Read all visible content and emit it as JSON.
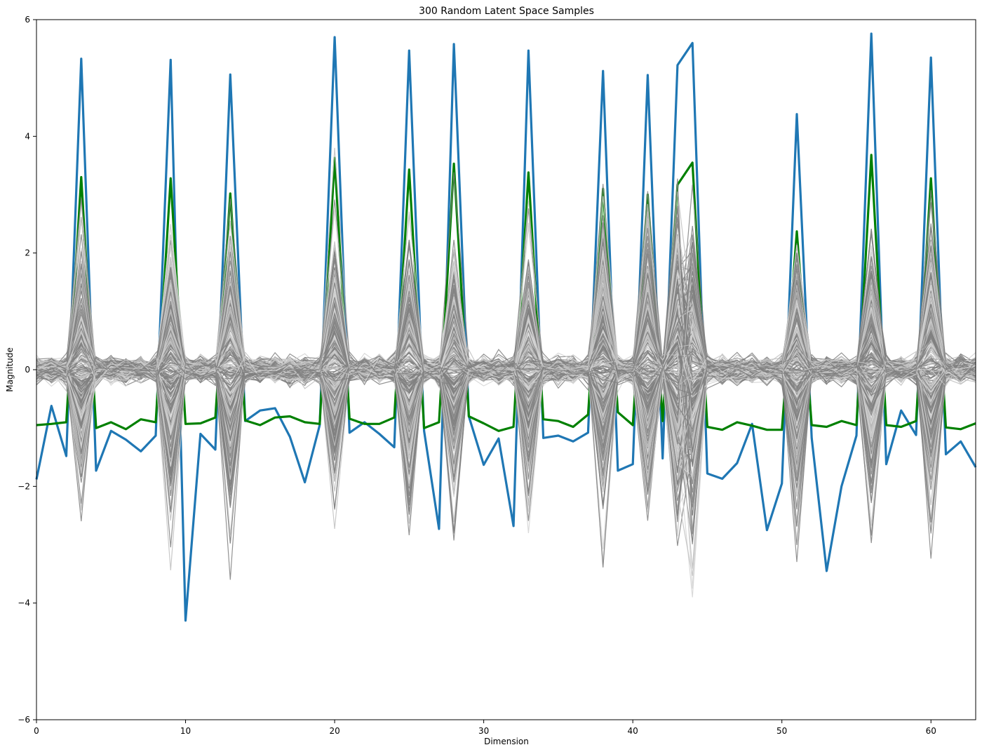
{
  "chart_data": {
    "type": "line",
    "title": "300 Random Latent Space Samples",
    "xlabel": "Dimension",
    "ylabel": "Magnitude",
    "xlim": [
      0,
      63
    ],
    "ylim": [
      -6,
      6
    ],
    "x_ticks": [
      0,
      10,
      20,
      30,
      40,
      50,
      60
    ],
    "y_ticks": [
      -6,
      -4,
      -2,
      0,
      2,
      4,
      6
    ],
    "x_tick_labels": [
      "0",
      "10",
      "20",
      "30",
      "40",
      "50",
      "60"
    ],
    "y_tick_labels": [
      "−6",
      "−4",
      "−2",
      "0",
      "2",
      "4",
      "6"
    ],
    "grid": false,
    "legend": "none",
    "spike_dimensions": [
      3,
      9,
      13,
      20,
      25,
      28,
      33,
      38,
      41,
      43,
      44,
      51,
      56,
      60
    ],
    "random_samples": {
      "count": 300,
      "colors": [
        "#808080",
        "#bfbfbf",
        "#d3d3d3"
      ],
      "note_baseline": 0
    },
    "series": [
      {
        "color": "#1f77b4",
        "x": [
          0,
          1,
          2,
          3,
          4,
          5,
          6,
          7,
          8,
          9,
          10,
          11,
          12,
          13,
          14,
          15,
          16,
          17,
          18,
          19,
          20,
          21,
          22,
          23,
          24,
          25,
          26,
          27,
          28,
          29,
          30,
          31,
          32,
          33,
          34,
          35,
          36,
          37,
          38,
          39,
          40,
          41,
          42,
          43,
          44,
          45,
          46,
          47,
          48,
          49,
          50,
          51,
          52,
          53,
          54,
          55,
          56,
          57,
          58,
          59,
          60,
          61,
          62,
          63
        ],
        "values": [
          -1.88,
          -0.62,
          -1.48,
          5.33,
          -1.73,
          -1.05,
          -1.2,
          -1.4,
          -1.13,
          5.31,
          -4.3,
          -1.1,
          -1.37,
          5.06,
          -0.88,
          -0.7,
          -0.66,
          -1.15,
          -1.93,
          -0.95,
          5.7,
          -1.08,
          -0.9,
          -1.1,
          -1.33,
          5.47,
          -1.05,
          -2.73,
          5.58,
          -0.8,
          -1.63,
          -1.18,
          -2.68,
          5.47,
          -1.17,
          -1.13,
          -1.23,
          -1.08,
          5.12,
          -1.73,
          -1.62,
          5.05,
          -1.52,
          5.22,
          5.6,
          -1.78,
          -1.87,
          -1.6,
          -0.93,
          -2.75,
          -1.95,
          4.38,
          -1.17,
          -3.45,
          -2.0,
          -1.13,
          5.76,
          -1.62,
          -0.7,
          -1.12,
          5.35,
          -1.45,
          -1.23,
          -1.67
        ]
      },
      {
        "color": "#008000",
        "x": [
          0,
          1,
          2,
          3,
          4,
          5,
          6,
          7,
          8,
          9,
          10,
          11,
          12,
          13,
          14,
          15,
          16,
          17,
          18,
          19,
          20,
          21,
          22,
          23,
          24,
          25,
          26,
          27,
          28,
          29,
          30,
          31,
          32,
          33,
          34,
          35,
          36,
          37,
          38,
          39,
          40,
          41,
          42,
          43,
          44,
          45,
          46,
          47,
          48,
          49,
          50,
          51,
          52,
          53,
          54,
          55,
          56,
          57,
          58,
          59,
          60,
          61,
          62,
          63
        ],
        "values": [
          -0.95,
          -0.93,
          -0.9,
          3.3,
          -1.0,
          -0.9,
          -1.02,
          -0.85,
          -0.9,
          3.28,
          -0.93,
          -0.92,
          -0.82,
          3.02,
          -0.87,
          -0.95,
          -0.82,
          -0.8,
          -0.9,
          -0.93,
          3.63,
          -0.84,
          -0.93,
          -0.93,
          -0.82,
          3.43,
          -1.0,
          -0.9,
          3.53,
          -0.8,
          -0.92,
          -1.05,
          -0.98,
          3.38,
          -0.85,
          -0.88,
          -0.98,
          -0.77,
          3.1,
          -0.73,
          -0.95,
          3.0,
          -0.88,
          3.17,
          3.55,
          -0.98,
          -1.03,
          -0.9,
          -0.96,
          -1.03,
          -1.03,
          2.37,
          -0.95,
          -0.98,
          -0.88,
          -0.95,
          3.68,
          -0.95,
          -0.98,
          -0.88,
          3.28,
          -0.99,
          -1.02,
          -0.92
        ]
      }
    ]
  }
}
